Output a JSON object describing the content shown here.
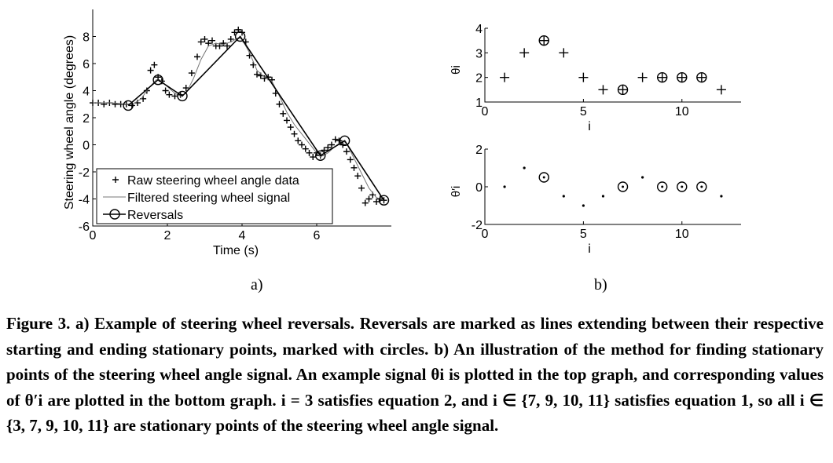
{
  "figure": {
    "panel_a_label": "a)",
    "panel_b_label": "b)",
    "caption": "Figure 3. a) Example of steering wheel reversals. Reversals are marked as lines extending between their respective starting and ending stationary points, marked with circles. b) An illustration of the method for finding stationary points of the steering wheel angle signal. An example signal θi is plotted in the top graph, and corresponding values of θ′i are plotted in the bottom graph. i = 3 satisfies equation 2, and i ∈ {7, 9, 10, 11} satisfies equation 1, so all i ∈ {3, 7, 9, 10, 11} are stationary points of the steering wheel angle signal."
  },
  "chart_data": [
    {
      "type": "line",
      "xlabel": "Time (s)",
      "ylabel": "Steering wheel angle (degrees)",
      "xlim": [
        0,
        8
      ],
      "ylim": [
        -6,
        10
      ],
      "xticks": [
        0,
        2,
        4,
        6
      ],
      "yticks": [
        -6,
        -4,
        -2,
        0,
        2,
        4,
        6,
        8
      ],
      "legend_position": "bottom-left",
      "series": [
        {
          "name": "Raw steering wheel angle data",
          "marker": "+",
          "x": [
            0.0,
            0.15,
            0.3,
            0.45,
            0.6,
            0.75,
            0.9,
            1.05,
            1.2,
            1.35,
            1.45,
            1.55,
            1.65,
            1.75,
            1.85,
            1.95,
            2.05,
            2.2,
            2.35,
            2.5,
            2.65,
            2.8,
            2.9,
            3.0,
            3.1,
            3.2,
            3.3,
            3.4,
            3.5,
            3.6,
            3.7,
            3.8,
            3.9,
            4.0,
            4.1,
            4.2,
            4.3,
            4.4,
            4.5,
            4.6,
            4.7,
            4.8,
            4.9,
            5.0,
            5.1,
            5.2,
            5.3,
            5.4,
            5.5,
            5.6,
            5.7,
            5.8,
            5.9,
            6.0,
            6.1,
            6.2,
            6.3,
            6.4,
            6.5,
            6.6,
            6.7,
            6.8,
            6.9,
            7.0,
            7.1,
            7.2,
            7.3,
            7.4,
            7.5,
            7.6,
            7.7,
            7.8
          ],
          "y": [
            3.1,
            3.1,
            3.0,
            3.1,
            3.0,
            3.0,
            3.0,
            2.9,
            3.1,
            3.4,
            4.0,
            5.5,
            5.9,
            5.0,
            4.7,
            4.0,
            3.7,
            3.6,
            3.7,
            4.2,
            5.3,
            6.5,
            7.6,
            7.8,
            7.5,
            7.7,
            7.3,
            7.3,
            7.5,
            7.3,
            7.8,
            8.3,
            8.5,
            8.3,
            7.6,
            6.6,
            5.9,
            5.2,
            5.1,
            4.9,
            5.0,
            4.8,
            3.8,
            3.0,
            2.3,
            1.8,
            1.3,
            0.8,
            0.3,
            0.0,
            -0.3,
            -0.6,
            -0.9,
            -0.6,
            -0.8,
            -0.4,
            -0.2,
            0.0,
            0.4,
            0.3,
            0.0,
            -0.5,
            -1.1,
            -1.7,
            -2.3,
            -3.2,
            -4.3,
            -4.0,
            -3.7,
            -4.2,
            -4.0,
            -4.1
          ]
        },
        {
          "name": "Filtered steering wheel signal",
          "x": [
            0.0,
            0.5,
            0.9,
            1.1,
            1.3,
            1.5,
            1.7,
            1.8,
            2.0,
            2.2,
            2.35,
            2.5,
            2.7,
            2.9,
            3.1,
            3.3,
            3.5,
            3.7,
            3.9,
            4.0,
            4.2,
            4.4,
            4.6,
            4.8,
            5.0,
            5.2,
            5.4,
            5.6,
            5.8,
            6.0,
            6.1,
            6.3,
            6.5,
            6.7,
            6.8,
            7.0,
            7.2,
            7.4,
            7.6,
            7.8
          ],
          "y": [
            3.1,
            3.1,
            3.0,
            3.05,
            3.4,
            4.2,
            4.8,
            4.8,
            4.3,
            3.8,
            3.6,
            3.8,
            4.9,
            6.3,
            7.3,
            7.5,
            7.4,
            7.6,
            7.9,
            7.8,
            6.8,
            5.5,
            5.0,
            4.7,
            3.6,
            2.4,
            1.5,
            0.8,
            0.1,
            -0.6,
            -0.9,
            -0.6,
            -0.1,
            0.3,
            0.1,
            -1.0,
            -2.1,
            -3.2,
            -3.9,
            -4.1
          ]
        },
        {
          "name": "Reversals",
          "marker": "o",
          "x": [
            0.95,
            1.75,
            2.4,
            3.95,
            6.1,
            6.75,
            7.8
          ],
          "y": [
            2.9,
            4.8,
            3.6,
            8.0,
            -0.8,
            0.3,
            -4.1
          ]
        }
      ]
    },
    {
      "type": "scatter",
      "xlabel": "i",
      "ylabel": "θi",
      "xlim": [
        0,
        13
      ],
      "ylim": [
        1,
        4
      ],
      "xticks": [
        0,
        5,
        10
      ],
      "yticks": [
        1,
        2,
        3,
        4
      ],
      "series": [
        {
          "marker": "+",
          "x": [
            1,
            2,
            3,
            4,
            5,
            6,
            7,
            8,
            9,
            10,
            11,
            12
          ],
          "y": [
            2,
            3,
            3.5,
            3,
            2,
            1.5,
            1.5,
            2,
            2,
            2,
            2,
            1.5
          ]
        },
        {
          "marker": "o",
          "x": [
            3,
            7,
            9,
            10,
            11
          ],
          "y": [
            3.5,
            1.5,
            2,
            2,
            2
          ]
        }
      ]
    },
    {
      "type": "scatter",
      "xlabel": "i",
      "ylabel": "θ′i",
      "xlim": [
        0,
        13
      ],
      "ylim": [
        -2,
        2
      ],
      "xticks": [
        0,
        5,
        10
      ],
      "yticks": [
        -2,
        0,
        2
      ],
      "series": [
        {
          "marker": ".",
          "x": [
            1,
            2,
            4,
            5,
            6,
            8,
            12
          ],
          "y": [
            0,
            1,
            -0.5,
            -1,
            -0.5,
            0.5,
            -0.5
          ]
        },
        {
          "marker": "o",
          "x": [
            3,
            7,
            9,
            10,
            11
          ],
          "y": [
            0.5,
            0,
            0,
            0,
            0
          ]
        }
      ]
    }
  ]
}
